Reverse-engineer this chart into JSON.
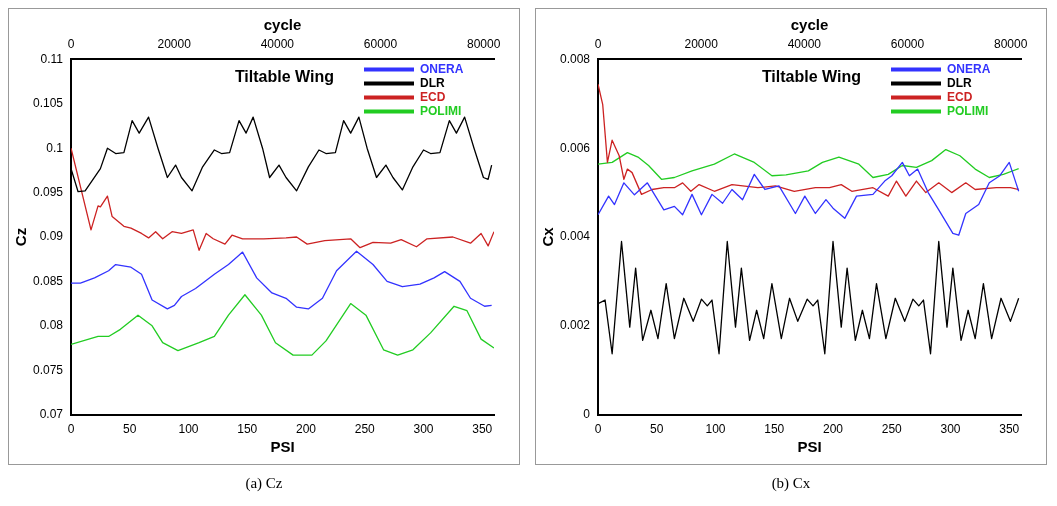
{
  "chart_data": [
    {
      "type": "line",
      "title": "Tiltable Wing",
      "xlabel": "PSI",
      "x2label": "cycle",
      "ylabel": "Cz",
      "xlim": [
        0,
        360
      ],
      "xticks": [
        0,
        50,
        100,
        150,
        200,
        250,
        300,
        350
      ],
      "x2lim": [
        0,
        82000
      ],
      "x2ticks": [
        0,
        20000,
        40000,
        60000,
        80000
      ],
      "ylim": [
        0.07,
        0.11
      ],
      "yticks": [
        0.07,
        0.075,
        0.08,
        0.085,
        0.09,
        0.095,
        0.1,
        0.105,
        0.11
      ],
      "legend": "top right",
      "marker": "none",
      "line_style": "solid",
      "annotations": [
        "(a) Cz"
      ],
      "series": [
        {
          "name": "ONERA",
          "color": "#3333ff",
          "x": [
            0,
            8,
            20,
            32,
            38,
            51,
            60,
            69,
            82,
            88,
            94,
            106,
            122,
            134,
            146,
            158,
            171,
            183,
            192,
            202,
            214,
            226,
            243,
            257,
            269,
            282,
            297,
            309,
            318,
            331,
            340,
            352,
            358
          ],
          "values": [
            0.0848,
            0.0848,
            0.0854,
            0.0862,
            0.0869,
            0.0866,
            0.0858,
            0.0829,
            0.0819,
            0.0823,
            0.0833,
            0.0842,
            0.0858,
            0.0869,
            0.0883,
            0.0854,
            0.0837,
            0.0831,
            0.0821,
            0.0819,
            0.0831,
            0.0862,
            0.0884,
            0.0869,
            0.085,
            0.0844,
            0.0847,
            0.0854,
            0.0861,
            0.085,
            0.0831,
            0.0822,
            0.0823
          ]
        },
        {
          "name": "DLR",
          "color": "#000000",
          "x": [
            0,
            6,
            12,
            25,
            31,
            38,
            45,
            52,
            58,
            66,
            74,
            82,
            89,
            94,
            103,
            112,
            122,
            128,
            135,
            143,
            149,
            155,
            163,
            169,
            177,
            183,
            192,
            202,
            211,
            217,
            225,
            232,
            238,
            245,
            252,
            260,
            268,
            274,
            282,
            291,
            300,
            306,
            314,
            322,
            328,
            335,
            343,
            351,
            355,
            358
          ],
          "values": [
            0.0977,
            0.0951,
            0.0952,
            0.0977,
            0.1,
            0.0994,
            0.0995,
            0.1031,
            0.1017,
            0.1035,
            0.1,
            0.0967,
            0.0981,
            0.0967,
            0.0952,
            0.0979,
            0.0998,
            0.0994,
            0.0995,
            0.1031,
            0.1017,
            0.1035,
            0.1,
            0.0967,
            0.0981,
            0.0967,
            0.0952,
            0.0979,
            0.0998,
            0.0994,
            0.0995,
            0.1031,
            0.1017,
            0.1035,
            0.1,
            0.0967,
            0.0981,
            0.0967,
            0.0953,
            0.0979,
            0.0998,
            0.0994,
            0.0995,
            0.1031,
            0.1017,
            0.1035,
            0.1,
            0.0967,
            0.0965,
            0.0981
          ]
        },
        {
          "name": "ECD",
          "color": "#cc2222",
          "x": [
            0,
            17,
            23,
            25,
            31,
            35,
            45,
            51,
            60,
            66,
            72,
            78,
            86,
            94,
            104,
            109,
            115,
            121,
            131,
            137,
            146,
            164,
            183,
            192,
            201,
            216,
            238,
            246,
            257,
            272,
            281,
            294,
            303,
            325,
            340,
            349,
            355,
            360
          ],
          "values": [
            0.1,
            0.0908,
            0.0935,
            0.0934,
            0.0946,
            0.0923,
            0.0912,
            0.091,
            0.0904,
            0.0899,
            0.0906,
            0.0898,
            0.0906,
            0.0904,
            0.0908,
            0.0885,
            0.0904,
            0.0898,
            0.0892,
            0.0902,
            0.0898,
            0.0898,
            0.0899,
            0.09,
            0.0892,
            0.0896,
            0.0898,
            0.0888,
            0.0894,
            0.0893,
            0.0897,
            0.0889,
            0.0898,
            0.09,
            0.0893,
            0.0904,
            0.089,
            0.0906
          ]
        },
        {
          "name": "POLIMI",
          "color": "#22cc22",
          "x": [
            0,
            23,
            32,
            42,
            57,
            69,
            78,
            91,
            109,
            122,
            134,
            148,
            162,
            174,
            189,
            205,
            217,
            238,
            251,
            266,
            278,
            291,
            306,
            326,
            337,
            349,
            360
          ],
          "values": [
            0.0779,
            0.0788,
            0.0788,
            0.0796,
            0.0812,
            0.08,
            0.0781,
            0.0772,
            0.0781,
            0.0788,
            0.0812,
            0.0835,
            0.0812,
            0.0781,
            0.0767,
            0.0767,
            0.0783,
            0.0825,
            0.0812,
            0.0773,
            0.0767,
            0.0773,
            0.0792,
            0.0822,
            0.0817,
            0.0785,
            0.0775
          ]
        }
      ]
    },
    {
      "type": "line",
      "title": "Tiltable Wing",
      "xlabel": "PSI",
      "x2label": "cycle",
      "ylabel": "Cx",
      "xlim": [
        0,
        360
      ],
      "xticks": [
        0,
        50,
        100,
        150,
        200,
        250,
        300,
        350
      ],
      "x2lim": [
        0,
        82000
      ],
      "x2ticks": [
        0,
        20000,
        40000,
        60000,
        80000
      ],
      "ylim": [
        0,
        0.008
      ],
      "yticks": [
        0,
        0.002,
        0.004,
        0.006,
        0.008
      ],
      "legend": "top right",
      "marker": "none",
      "line_style": "solid",
      "annotations": [
        "(b) Cx"
      ],
      "series": [
        {
          "name": "ONERA",
          "color": "#3333ff",
          "x": [
            0,
            9,
            14,
            22,
            31,
            42,
            56,
            65,
            72,
            80,
            88,
            97,
            106,
            114,
            123,
            133,
            142,
            154,
            168,
            176,
            185,
            194,
            200,
            210,
            220,
            234,
            244,
            250,
            259,
            265,
            272,
            281,
            290,
            302,
            307,
            313,
            324,
            333,
            342,
            350,
            358
          ],
          "values": [
            0.0045,
            0.00492,
            0.00473,
            0.00522,
            0.00495,
            0.00522,
            0.00461,
            0.00469,
            0.0045,
            0.00496,
            0.0045,
            0.00496,
            0.00476,
            0.00507,
            0.00484,
            0.00541,
            0.00507,
            0.00515,
            0.00453,
            0.00492,
            0.00453,
            0.00484,
            0.00465,
            0.00442,
            0.00492,
            0.00496,
            0.00526,
            0.00538,
            0.00568,
            0.00538,
            0.00553,
            0.005,
            0.00461,
            0.00408,
            0.00404,
            0.00453,
            0.00473,
            0.00522,
            0.00538,
            0.00568,
            0.00503
          ]
        },
        {
          "name": "DLR",
          "color": "#000000",
          "x": [
            0,
            6,
            12,
            20,
            27,
            32,
            38,
            45,
            51,
            58,
            65,
            73,
            81,
            88,
            93,
            97,
            103,
            110,
            117,
            122,
            129,
            135,
            141,
            148,
            156,
            163,
            170,
            178,
            183,
            187,
            193,
            200,
            207,
            212,
            219,
            225,
            231,
            237,
            245,
            253,
            261,
            268,
            273,
            277,
            283,
            290,
            297,
            302,
            309,
            315,
            321,
            328,
            335,
            343,
            351,
            358
          ],
          "values": [
            0.0025,
            0.00258,
            0.00137,
            0.0039,
            0.00197,
            0.0033,
            0.00167,
            0.00235,
            0.00171,
            0.00295,
            0.00171,
            0.00262,
            0.0021,
            0.0026,
            0.00245,
            0.00258,
            0.00137,
            0.0039,
            0.00197,
            0.0033,
            0.00167,
            0.00235,
            0.00171,
            0.00295,
            0.00171,
            0.00262,
            0.0021,
            0.0026,
            0.00245,
            0.00258,
            0.00137,
            0.0039,
            0.00197,
            0.0033,
            0.00167,
            0.00235,
            0.00171,
            0.00295,
            0.00171,
            0.00262,
            0.0021,
            0.0026,
            0.00245,
            0.00258,
            0.00137,
            0.0039,
            0.00197,
            0.0033,
            0.00167,
            0.00235,
            0.00171,
            0.00295,
            0.00171,
            0.00262,
            0.0021,
            0.00262
          ]
        },
        {
          "name": "ECD",
          "color": "#cc2222",
          "x": [
            0,
            4,
            8,
            12,
            18,
            22,
            25,
            29,
            37,
            46,
            56,
            65,
            72,
            79,
            86,
            99,
            114,
            136,
            151,
            167,
            185,
            197,
            207,
            216,
            234,
            247,
            254,
            262,
            271,
            279,
            290,
            301,
            313,
            321,
            339,
            351,
            358
          ],
          "values": [
            0.00744,
            0.00698,
            0.00568,
            0.00618,
            0.00583,
            0.0053,
            0.00553,
            0.00545,
            0.00496,
            0.00507,
            0.00511,
            0.00511,
            0.00522,
            0.00503,
            0.00518,
            0.00503,
            0.00518,
            0.00511,
            0.00515,
            0.00503,
            0.00511,
            0.00511,
            0.00518,
            0.00503,
            0.00511,
            0.00492,
            0.00526,
            0.00492,
            0.00526,
            0.005,
            0.00522,
            0.005,
            0.00522,
            0.00507,
            0.00511,
            0.00511,
            0.00507
          ]
        },
        {
          "name": "POLIMI",
          "color": "#22cc22",
          "x": [
            0,
            12,
            25,
            34,
            43,
            54,
            65,
            80,
            99,
            116,
            133,
            148,
            160,
            179,
            191,
            205,
            222,
            234,
            247,
            259,
            271,
            284,
            296,
            308,
            321,
            333,
            345,
            358
          ],
          "values": [
            0.00564,
            0.00568,
            0.0059,
            0.0058,
            0.00561,
            0.0053,
            0.00534,
            0.00549,
            0.00564,
            0.00587,
            0.00568,
            0.00538,
            0.0054,
            0.00549,
            0.00568,
            0.0058,
            0.00564,
            0.00534,
            0.00541,
            0.00561,
            0.00557,
            0.00572,
            0.00597,
            0.00583,
            0.00553,
            0.00534,
            0.00541,
            0.00554
          ]
        }
      ]
    }
  ]
}
